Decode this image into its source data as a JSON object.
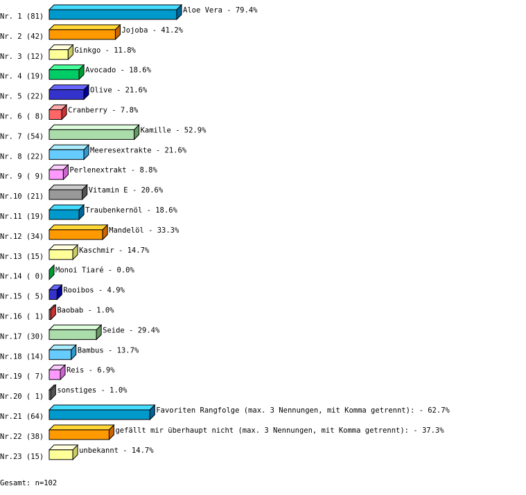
{
  "chart_data": {
    "type": "bar",
    "orientation": "horizontal",
    "style": "3d",
    "categories": [
      "Aloe Vera",
      "Jojoba",
      "Ginkgo",
      "Avocado",
      "Olive",
      "Cranberry",
      "Kamille",
      "Meeresextrakte",
      "Perlenextrakt",
      "Vitamin E",
      "Traubenkernöl",
      "Mandelöl",
      "Kaschmir",
      "Monoi Tiaré",
      "Rooibos",
      "Baobab",
      "Seide",
      "Bambus",
      "Reis",
      "sonstiges",
      "Favoriten Rangfolge (max. 3 Nennungen, mit Komma getrennt):",
      "gefällt mir überhaupt nicht (max. 3 Nennungen, mit Komma getrennt):",
      "unbekannt"
    ],
    "row_labels": [
      "Nr. 1 (81)",
      "Nr. 2 (42)",
      "Nr. 3 (12)",
      "Nr. 4 (19)",
      "Nr. 5 (22)",
      "Nr. 6 ( 8)",
      "Nr. 7 (54)",
      "Nr. 8 (22)",
      "Nr. 9 ( 9)",
      "Nr.10 (21)",
      "Nr.11 (19)",
      "Nr.12 (34)",
      "Nr.13 (15)",
      "Nr.14 ( 0)",
      "Nr.15 ( 5)",
      "Nr.16 ( 1)",
      "Nr.17 (30)",
      "Nr.18 (14)",
      "Nr.19 ( 7)",
      "Nr.20 ( 1)",
      "Nr.21 (64)",
      "Nr.22 (38)",
      "Nr.23 (15)"
    ],
    "counts": [
      81,
      42,
      12,
      19,
      22,
      8,
      54,
      22,
      9,
      21,
      19,
      34,
      15,
      0,
      5,
      1,
      30,
      14,
      7,
      1,
      64,
      38,
      15
    ],
    "values": [
      79.4,
      41.2,
      11.8,
      18.6,
      21.6,
      7.8,
      52.9,
      21.6,
      8.8,
      20.6,
      18.6,
      33.3,
      14.7,
      0.0,
      4.9,
      1.0,
      29.4,
      13.7,
      6.9,
      1.0,
      62.7,
      37.3,
      14.7
    ],
    "value_labels": [
      "79.4%",
      "41.2%",
      "11.8%",
      "18.6%",
      "21.6%",
      "7.8%",
      "52.9%",
      "21.6%",
      "8.8%",
      "20.6%",
      "18.6%",
      "33.3%",
      "14.7%",
      "0.0%",
      "4.9%",
      "1.0%",
      "29.4%",
      "13.7%",
      "6.9%",
      "1.0%",
      "62.7%",
      "37.3%",
      "14.7%"
    ],
    "palette": [
      {
        "front": "#0099cc",
        "top": "#44ddff",
        "side": "#006699"
      },
      {
        "front": "#ff9900",
        "top": "#ffd633",
        "side": "#cc6600"
      },
      {
        "front": "#ffff99",
        "top": "#ffffdd",
        "side": "#cccc66"
      },
      {
        "front": "#00cc66",
        "top": "#44ff99",
        "side": "#009933"
      },
      {
        "front": "#3333cc",
        "top": "#6666ff",
        "side": "#000099"
      },
      {
        "front": "#ff6666",
        "top": "#ffaaaa",
        "side": "#cc3333"
      },
      {
        "front": "#aaddaa",
        "top": "#ddffdd",
        "side": "#669966"
      },
      {
        "front": "#66ccff",
        "top": "#aaeeff",
        "side": "#3399cc"
      },
      {
        "front": "#ff99ff",
        "top": "#ffccff",
        "side": "#cc66cc"
      },
      {
        "front": "#999999",
        "top": "#cccccc",
        "side": "#555555"
      }
    ],
    "xlim": [
      0,
      100
    ]
  },
  "footer": {
    "total": "Gesamt: n=102"
  }
}
